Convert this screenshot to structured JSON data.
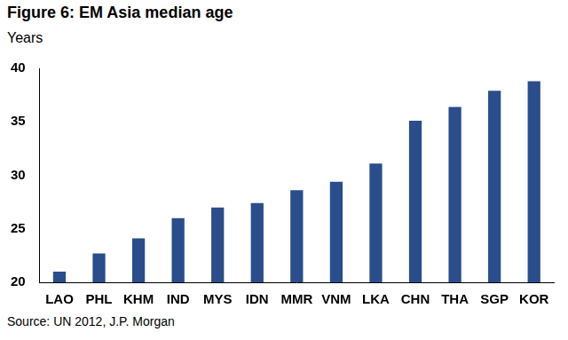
{
  "chart_data": {
    "type": "bar",
    "title": "Figure 6: EM Asia median age",
    "ylabel": "Years",
    "source": "Source: UN 2012, J.P. Morgan",
    "categories": [
      "LAO",
      "PHL",
      "KHM",
      "IND",
      "MYS",
      "IDN",
      "MMR",
      "VNM",
      "LKA",
      "CHN",
      "THA",
      "SGP",
      "KOR"
    ],
    "values": [
      21.0,
      22.7,
      24.1,
      26.0,
      27.0,
      27.4,
      28.6,
      29.4,
      31.1,
      35.1,
      36.4,
      37.9,
      38.8
    ],
    "color": "#2a4d8c",
    "ylim": [
      20,
      40
    ],
    "yticks": [
      20,
      25,
      30,
      35,
      40
    ],
    "grid": false
  }
}
